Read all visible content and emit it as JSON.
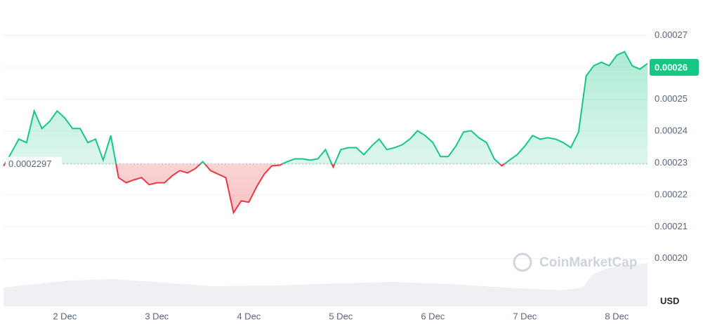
{
  "chart_data": {
    "type": "line",
    "categories": [
      "",
      null,
      null,
      null,
      null,
      null,
      null,
      null,
      "2 Dec",
      null,
      null,
      null,
      null,
      null,
      null,
      null,
      null,
      null,
      null,
      null,
      "3 Dec",
      null,
      null,
      null,
      null,
      null,
      null,
      null,
      null,
      null,
      null,
      null,
      "4 Dec",
      null,
      null,
      null,
      null,
      null,
      null,
      null,
      null,
      null,
      null,
      null,
      "5 Dec",
      null,
      null,
      null,
      null,
      null,
      null,
      null,
      null,
      null,
      null,
      null,
      "6 Dec",
      null,
      null,
      null,
      null,
      null,
      null,
      null,
      null,
      null,
      null,
      null,
      "7 Dec",
      null,
      null,
      null,
      null,
      null,
      null,
      null,
      null,
      null,
      null,
      null,
      "8 Dec",
      null,
      null,
      null,
      null
    ],
    "values": [
      0.000229,
      0.0002331,
      0.0002375,
      0.0002364,
      0.0002463,
      0.0002408,
      0.000243,
      0.0002463,
      0.0002441,
      0.0002408,
      0.0002408,
      0.0002364,
      0.0002375,
      0.0002309,
      0.0002386,
      0.0002254,
      0.0002238,
      0.0002247,
      0.0002254,
      0.0002232,
      0.0002238,
      0.0002238,
      0.000226,
      0.0002276,
      0.0002269,
      0.0002282,
      0.0002304,
      0.0002276,
      0.0002265,
      0.0002254,
      0.0002144,
      0.0002181,
      0.0002177,
      0.0002225,
      0.0002265,
      0.0002291,
      0.0002293,
      0.0002304,
      0.0002313,
      0.0002313,
      0.0002309,
      0.0002313,
      0.0002342,
      0.0002287,
      0.0002342,
      0.0002348,
      0.0002348,
      0.0002326,
      0.0002353,
      0.0002375,
      0.0002342,
      0.0002348,
      0.0002357,
      0.0002375,
      0.0002401,
      0.0002386,
      0.0002364,
      0.000232,
      0.000232,
      0.0002353,
      0.0002397,
      0.0002401,
      0.0002379,
      0.0002364,
      0.0002313,
      0.0002291,
      0.0002309,
      0.0002326,
      0.0002353,
      0.0002386,
      0.0002375,
      0.0002379,
      0.0002375,
      0.0002364,
      0.0002348,
      0.0002397,
      0.0002573,
      0.0002605,
      0.0002616,
      0.0002605,
      0.0002638,
      0.0002649,
      0.0002605,
      0.0002594,
      0.0002612
    ],
    "baseline": 0.0002297,
    "current_price": 0.00026,
    "up_color": "#16c784",
    "down_color": "#ea3943",
    "ylim": [
      0.000185,
      0.00028
    ],
    "yticks": [
      {
        "value": 0.0002,
        "label": "0.00020"
      },
      0.00021,
      0.00022,
      0.00023,
      0.00024,
      0.00025,
      0.00026,
      0.00027
    ],
    "grid": true,
    "currency": "USD",
    "watermark": "CoinMarketCap"
  }
}
